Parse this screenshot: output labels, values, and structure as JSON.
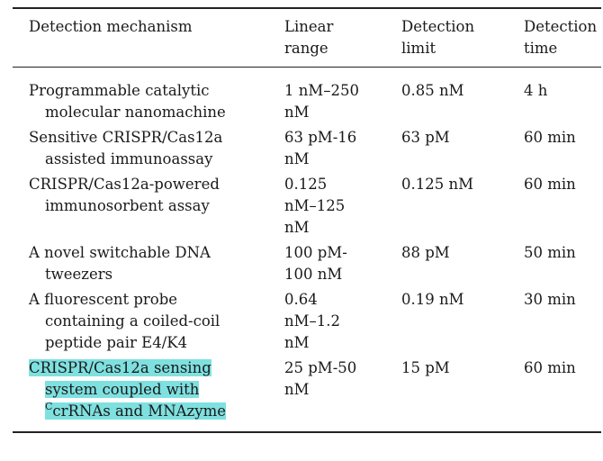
{
  "table": {
    "headers": {
      "mechanism": "Detection mechanism",
      "range_l1": "Linear",
      "range_l2": "range",
      "limit_l1": "Detection",
      "limit_l2": "limit",
      "time_l1": "Detection",
      "time_l2": "time"
    },
    "rows": [
      {
        "mech": [
          "Programmable catalytic",
          "molecular nanomachine"
        ],
        "range": [
          "1 nM–250",
          "nM"
        ],
        "limit": "0.85 nM",
        "time": "4 h"
      },
      {
        "mech": [
          "Sensitive CRISPR/Cas12a",
          "assisted immunoassay"
        ],
        "range": [
          "63 pM-16",
          "nM"
        ],
        "limit": "63 pM",
        "time": "60 min"
      },
      {
        "mech": [
          "CRISPR/Cas12a-powered",
          "immunosorbent assay"
        ],
        "range": [
          "0.125",
          "nM–125",
          "nM"
        ],
        "limit": "0.125 nM",
        "time": "60 min"
      },
      {
        "mech": [
          "A novel switchable DNA",
          "tweezers"
        ],
        "range": [
          "100 pM-",
          "100 nM"
        ],
        "limit": "88 pM",
        "time": "50 min"
      },
      {
        "mech": [
          "A fluorescent probe",
          "containing a coiled-coil",
          "peptide pair E4/K4"
        ],
        "range": [
          "0.64",
          "nM–1.2",
          "nM"
        ],
        "limit": "0.19 nM",
        "time": "30 min"
      },
      {
        "mech": [
          "CRISPR/Cas12a sensing",
          "system coupled with"
        ],
        "mech_sup": "C",
        "mech_last": "crRNAs and MNAzyme",
        "range": [
          "25 pM-50",
          "nM"
        ],
        "limit": "15 pM",
        "time": "60 min"
      }
    ]
  }
}
